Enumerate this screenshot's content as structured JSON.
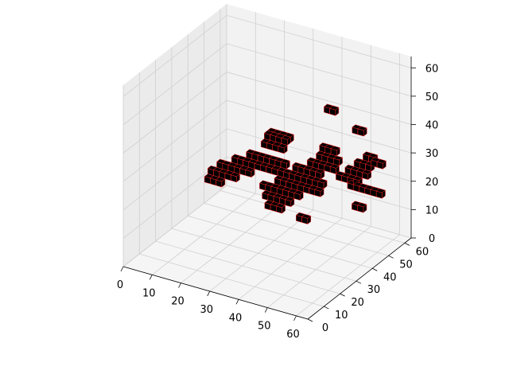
{
  "chart_data": {
    "type": "voxel-3d",
    "title": "",
    "xlabel": "",
    "ylabel": "",
    "zlabel": "",
    "xlim": [
      0,
      64
    ],
    "ylim": [
      0,
      64
    ],
    "zlim": [
      0,
      64
    ],
    "x_ticks": [
      "0",
      "10",
      "20",
      "30",
      "40",
      "50",
      "60"
    ],
    "y_ticks": [
      "0",
      "10",
      "20",
      "30",
      "40",
      "50",
      "60"
    ],
    "z_ticks": [
      "0",
      "10",
      "20",
      "30",
      "40",
      "50",
      "60"
    ],
    "grid": true,
    "voxel_face_color": "#000000",
    "voxel_edge_color": "#ff2020",
    "voxel_size": 2,
    "voxels": [
      [
        22,
        48,
        30
      ],
      [
        24,
        48,
        30
      ],
      [
        26,
        48,
        30
      ],
      [
        28,
        48,
        30
      ],
      [
        22,
        50,
        30
      ],
      [
        24,
        50,
        30
      ],
      [
        26,
        50,
        30
      ],
      [
        28,
        50,
        30
      ],
      [
        22,
        46,
        28
      ],
      [
        24,
        46,
        28
      ],
      [
        26,
        46,
        28
      ],
      [
        28,
        46,
        28
      ],
      [
        18,
        44,
        24
      ],
      [
        20,
        44,
        24
      ],
      [
        22,
        44,
        24
      ],
      [
        24,
        44,
        24
      ],
      [
        26,
        44,
        24
      ],
      [
        28,
        44,
        24
      ],
      [
        30,
        44,
        24
      ],
      [
        14,
        42,
        22
      ],
      [
        16,
        42,
        22
      ],
      [
        18,
        42,
        22
      ],
      [
        20,
        42,
        22
      ],
      [
        22,
        42,
        22
      ],
      [
        24,
        42,
        22
      ],
      [
        26,
        42,
        22
      ],
      [
        28,
        42,
        22
      ],
      [
        30,
        42,
        22
      ],
      [
        32,
        42,
        22
      ],
      [
        10,
        40,
        20
      ],
      [
        12,
        40,
        20
      ],
      [
        14,
        40,
        20
      ],
      [
        16,
        40,
        20
      ],
      [
        18,
        40,
        20
      ],
      [
        20,
        40,
        20
      ],
      [
        8,
        38,
        18
      ],
      [
        10,
        38,
        18
      ],
      [
        12,
        38,
        18
      ],
      [
        14,
        38,
        18
      ],
      [
        16,
        38,
        18
      ],
      [
        8,
        36,
        16
      ],
      [
        10,
        36,
        16
      ],
      [
        12,
        36,
        16
      ],
      [
        34,
        44,
        24
      ],
      [
        36,
        44,
        24
      ],
      [
        38,
        44,
        24
      ],
      [
        40,
        44,
        24
      ],
      [
        42,
        44,
        24
      ],
      [
        32,
        42,
        22
      ],
      [
        34,
        42,
        22
      ],
      [
        36,
        42,
        22
      ],
      [
        38,
        42,
        22
      ],
      [
        40,
        42,
        22
      ],
      [
        42,
        42,
        22
      ],
      [
        44,
        42,
        22
      ],
      [
        30,
        40,
        20
      ],
      [
        32,
        40,
        20
      ],
      [
        34,
        40,
        20
      ],
      [
        36,
        40,
        20
      ],
      [
        38,
        40,
        20
      ],
      [
        40,
        40,
        20
      ],
      [
        42,
        40,
        20
      ],
      [
        44,
        40,
        20
      ],
      [
        26,
        38,
        18
      ],
      [
        28,
        38,
        18
      ],
      [
        30,
        38,
        18
      ],
      [
        32,
        38,
        18
      ],
      [
        34,
        38,
        18
      ],
      [
        36,
        38,
        18
      ],
      [
        38,
        38,
        18
      ],
      [
        28,
        36,
        16
      ],
      [
        30,
        36,
        16
      ],
      [
        32,
        36,
        16
      ],
      [
        34,
        36,
        16
      ],
      [
        36,
        36,
        16
      ],
      [
        30,
        34,
        14
      ],
      [
        32,
        34,
        14
      ],
      [
        34,
        34,
        14
      ],
      [
        40,
        50,
        30
      ],
      [
        42,
        50,
        30
      ],
      [
        44,
        50,
        30
      ],
      [
        40,
        48,
        28
      ],
      [
        42,
        48,
        28
      ],
      [
        44,
        48,
        28
      ],
      [
        46,
        48,
        28
      ],
      [
        38,
        46,
        26
      ],
      [
        40,
        46,
        26
      ],
      [
        42,
        46,
        26
      ],
      [
        44,
        46,
        26
      ],
      [
        46,
        46,
        26
      ],
      [
        48,
        46,
        24
      ],
      [
        50,
        46,
        24
      ],
      [
        52,
        46,
        24
      ],
      [
        54,
        46,
        24
      ],
      [
        50,
        48,
        26
      ],
      [
        52,
        48,
        26
      ],
      [
        54,
        48,
        26
      ],
      [
        56,
        48,
        26
      ],
      [
        52,
        50,
        28
      ],
      [
        54,
        50,
        28
      ],
      [
        56,
        50,
        28
      ],
      [
        54,
        52,
        30
      ],
      [
        56,
        52,
        30
      ],
      [
        58,
        50,
        30
      ],
      [
        60,
        50,
        30
      ],
      [
        52,
        46,
        22
      ],
      [
        54,
        46,
        22
      ],
      [
        56,
        46,
        22
      ],
      [
        58,
        46,
        22
      ],
      [
        60,
        46,
        22
      ],
      [
        62,
        46,
        22
      ],
      [
        48,
        56,
        36
      ],
      [
        50,
        56,
        36
      ],
      [
        36,
        60,
        38
      ],
      [
        38,
        60,
        38
      ],
      [
        42,
        32,
        14
      ],
      [
        44,
        32,
        14
      ],
      [
        58,
        38,
        20
      ],
      [
        60,
        38,
        20
      ]
    ]
  }
}
